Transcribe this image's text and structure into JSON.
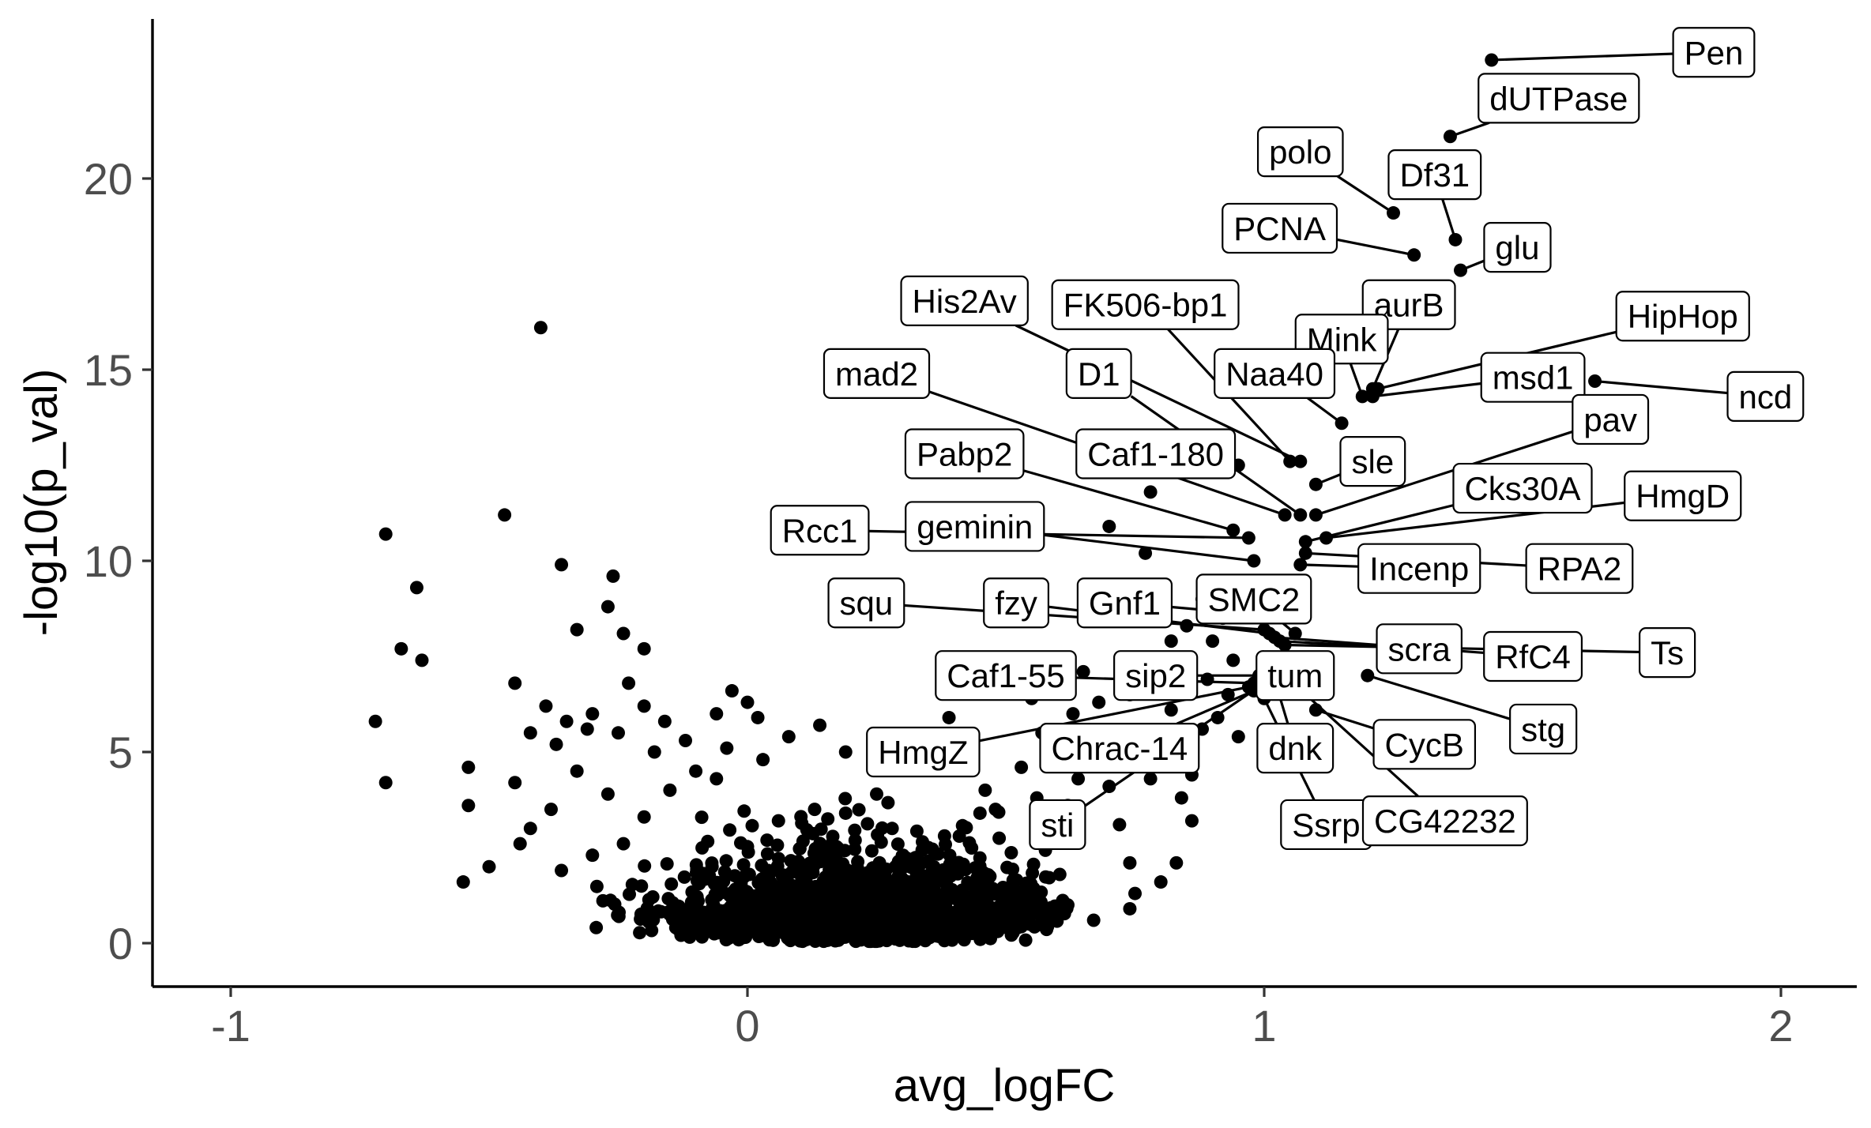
{
  "chart_data": {
    "type": "scatter",
    "title": "",
    "xlabel": "avg_logFC",
    "ylabel": "-log10(p_val)",
    "xlim": [
      -1.15,
      2.15
    ],
    "ylim": [
      -1.15,
      24.1
    ],
    "x_ticks": [
      -1,
      0,
      1,
      2
    ],
    "x_tick_labels": [
      "-1",
      "0",
      "1",
      "2"
    ],
    "y_ticks": [
      0,
      5,
      10,
      15,
      20
    ],
    "y_tick_labels": [
      "0",
      "5",
      "10",
      "15",
      "20"
    ],
    "grid": false,
    "legend": "none",
    "point_color": "#000000",
    "labeled_points": [
      {
        "gene": "Pen",
        "x": 1.44,
        "y": 23.1,
        "lx": 1.87,
        "ly": 23.3
      },
      {
        "gene": "dUTPase",
        "x": 1.36,
        "y": 21.1,
        "lx": 1.57,
        "ly": 22.1
      },
      {
        "gene": "polo",
        "x": 1.25,
        "y": 19.1,
        "lx": 1.07,
        "ly": 20.7
      },
      {
        "gene": "Df31",
        "x": 1.37,
        "y": 18.4,
        "lx": 1.33,
        "ly": 20.1
      },
      {
        "gene": "glu",
        "x": 1.38,
        "y": 17.6,
        "lx": 1.49,
        "ly": 18.2
      },
      {
        "gene": "PCNA",
        "x": 1.29,
        "y": 18.0,
        "lx": 1.03,
        "ly": 18.7
      },
      {
        "gene": "aurB",
        "x": 1.21,
        "y": 14.5,
        "lx": 1.28,
        "ly": 16.7
      },
      {
        "gene": "His2Av",
        "x": 1.07,
        "y": 12.6,
        "lx": 0.42,
        "ly": 16.8
      },
      {
        "gene": "FK506-bp1",
        "x": 1.05,
        "y": 12.6,
        "lx": 0.77,
        "ly": 16.7
      },
      {
        "gene": "Mink",
        "x": 1.19,
        "y": 14.3,
        "lx": 1.15,
        "ly": 15.8
      },
      {
        "gene": "HipHop",
        "x": 1.22,
        "y": 14.5,
        "lx": 1.81,
        "ly": 16.4
      },
      {
        "gene": "mad2",
        "x": 1.04,
        "y": 11.2,
        "lx": 0.25,
        "ly": 14.9
      },
      {
        "gene": "D1",
        "x": 1.07,
        "y": 11.2,
        "lx": 0.68,
        "ly": 14.9
      },
      {
        "gene": "Naa40",
        "x": 1.15,
        "y": 13.6,
        "lx": 1.02,
        "ly": 14.9
      },
      {
        "gene": "msd1",
        "x": 1.21,
        "y": 14.3,
        "lx": 1.52,
        "ly": 14.8
      },
      {
        "gene": "ncd",
        "x": 1.64,
        "y": 14.7,
        "lx": 1.97,
        "ly": 14.3
      },
      {
        "gene": "Pabp2",
        "x": 0.94,
        "y": 10.8,
        "lx": 0.42,
        "ly": 12.8
      },
      {
        "gene": "Caf1-180",
        "x": 0.95,
        "y": 12.5,
        "lx": 0.79,
        "ly": 12.8
      },
      {
        "gene": "sle",
        "x": 1.1,
        "y": 12.0,
        "lx": 1.21,
        "ly": 12.6
      },
      {
        "gene": "pav",
        "x": 1.1,
        "y": 11.2,
        "lx": 1.67,
        "ly": 13.7
      },
      {
        "gene": "Rcc1",
        "x": 0.97,
        "y": 10.6,
        "lx": 0.14,
        "ly": 10.8
      },
      {
        "gene": "geminin",
        "x": 0.98,
        "y": 10.0,
        "lx": 0.44,
        "ly": 10.9
      },
      {
        "gene": "Cks30A",
        "x": 1.08,
        "y": 10.5,
        "lx": 1.5,
        "ly": 11.9
      },
      {
        "gene": "HmgD",
        "x": 1.12,
        "y": 10.6,
        "lx": 1.81,
        "ly": 11.7
      },
      {
        "gene": "Incenp",
        "x": 1.07,
        "y": 9.9,
        "lx": 1.3,
        "ly": 9.8
      },
      {
        "gene": "RPA2",
        "x": 1.08,
        "y": 10.2,
        "lx": 1.61,
        "ly": 9.8
      },
      {
        "gene": "squ",
        "x": 1.0,
        "y": 8.2,
        "lx": 0.23,
        "ly": 8.9
      },
      {
        "gene": "fzy",
        "x": 1.01,
        "y": 8.1,
        "lx": 0.52,
        "ly": 8.9
      },
      {
        "gene": "Gnf1",
        "x": 0.98,
        "y": 8.6,
        "lx": 0.73,
        "ly": 8.9
      },
      {
        "gene": "SMC2",
        "x": 1.06,
        "y": 8.1,
        "lx": 0.98,
        "ly": 9.0
      },
      {
        "gene": "scra",
        "x": 1.03,
        "y": 7.9,
        "lx": 1.3,
        "ly": 7.7
      },
      {
        "gene": "RfC4",
        "x": 1.02,
        "y": 8.0,
        "lx": 1.52,
        "ly": 7.5
      },
      {
        "gene": "Ts",
        "x": 1.04,
        "y": 7.8,
        "lx": 1.78,
        "ly": 7.6
      },
      {
        "gene": "Caf1-55",
        "x": 0.98,
        "y": 6.8,
        "lx": 0.5,
        "ly": 7.0
      },
      {
        "gene": "sip2",
        "x": 0.99,
        "y": 7.0,
        "lx": 0.79,
        "ly": 7.0
      },
      {
        "gene": "tum",
        "x": 1.03,
        "y": 7.3,
        "lx": 1.06,
        "ly": 7.0
      },
      {
        "gene": "HmgZ",
        "x": 0.97,
        "y": 6.7,
        "lx": 0.34,
        "ly": 5.0
      },
      {
        "gene": "Chrac-14",
        "x": 0.98,
        "y": 6.6,
        "lx": 0.72,
        "ly": 5.1
      },
      {
        "gene": "dnk",
        "x": 1.02,
        "y": 6.9,
        "lx": 1.06,
        "ly": 5.1
      },
      {
        "gene": "CycB",
        "x": 1.1,
        "y": 6.1,
        "lx": 1.31,
        "ly": 5.2
      },
      {
        "gene": "stg",
        "x": 1.2,
        "y": 7.0,
        "lx": 1.54,
        "ly": 5.6
      },
      {
        "gene": "sti",
        "x": 1.0,
        "y": 6.8,
        "lx": 0.6,
        "ly": 3.1
      },
      {
        "gene": "Ssrp",
        "x": 1.0,
        "y": 6.4,
        "lx": 1.12,
        "ly": 3.1
      },
      {
        "gene": "CG42232",
        "x": 1.04,
        "y": 7.0,
        "lx": 1.35,
        "ly": 3.2
      }
    ],
    "unlabeled_points": [
      [
        -0.4,
        16.1
      ],
      [
        -0.7,
        10.7
      ],
      [
        -0.64,
        9.3
      ],
      [
        -0.47,
        11.2
      ],
      [
        -0.36,
        9.9
      ],
      [
        -0.67,
        7.7
      ],
      [
        -0.63,
        7.4
      ],
      [
        -0.72,
        5.8
      ],
      [
        -0.7,
        4.2
      ],
      [
        -0.45,
        6.8
      ],
      [
        -0.39,
        6.2
      ],
      [
        -0.54,
        4.6
      ],
      [
        -0.54,
        3.6
      ],
      [
        -0.45,
        4.2
      ],
      [
        -0.33,
        8.2
      ],
      [
        -0.26,
        9.6
      ],
      [
        -0.27,
        8.8
      ],
      [
        -0.24,
        8.1
      ],
      [
        -0.2,
        7.7
      ],
      [
        -0.23,
        6.8
      ],
      [
        -0.31,
        5.6
      ],
      [
        -0.37,
        5.2
      ],
      [
        -0.35,
        5.8
      ],
      [
        -0.42,
        5.5
      ],
      [
        -0.3,
        6.0
      ],
      [
        -0.25,
        5.5
      ],
      [
        -0.18,
        5.0
      ],
      [
        -0.2,
        6.2
      ],
      [
        -0.16,
        5.8
      ],
      [
        -0.12,
        5.3
      ],
      [
        -0.33,
        4.5
      ],
      [
        -0.27,
        3.9
      ],
      [
        -0.38,
        3.5
      ],
      [
        -0.42,
        3.0
      ],
      [
        -0.5,
        2.0
      ],
      [
        -0.55,
        1.6
      ],
      [
        -0.44,
        2.6
      ],
      [
        -0.36,
        1.9
      ],
      [
        -0.3,
        2.3
      ],
      [
        -0.24,
        2.6
      ],
      [
        -0.2,
        3.3
      ],
      [
        -0.15,
        4.0
      ],
      [
        -0.1,
        4.5
      ],
      [
        -0.06,
        6.0
      ],
      [
        -0.03,
        6.6
      ],
      [
        -0.04,
        5.1
      ],
      [
        -0.06,
        4.3
      ],
      [
        0.0,
        6.3
      ],
      [
        0.02,
        5.9
      ],
      [
        0.03,
        4.8
      ],
      [
        0.08,
        5.4
      ],
      [
        0.14,
        5.7
      ],
      [
        0.19,
        5.0
      ],
      [
        0.28,
        4.9
      ],
      [
        0.19,
        3.4
      ],
      [
        0.25,
        3.9
      ],
      [
        0.28,
        3.0
      ],
      [
        0.13,
        3.5
      ],
      [
        0.06,
        3.2
      ],
      [
        0.35,
        2.5
      ],
      [
        0.41,
        2.8
      ],
      [
        0.45,
        3.4
      ],
      [
        0.46,
        4.0
      ],
      [
        0.39,
        5.9
      ],
      [
        0.48,
        3.5
      ],
      [
        0.53,
        4.6
      ],
      [
        0.57,
        5.5
      ],
      [
        0.59,
        4.9
      ],
      [
        0.56,
        3.8
      ],
      [
        0.6,
        2.7
      ],
      [
        0.62,
        3.6
      ],
      [
        0.64,
        4.3
      ],
      [
        0.66,
        5.1
      ],
      [
        0.68,
        6.3
      ],
      [
        0.7,
        4.1
      ],
      [
        0.72,
        3.1
      ],
      [
        0.74,
        2.1
      ],
      [
        0.75,
        1.3
      ],
      [
        0.78,
        4.3
      ],
      [
        0.8,
        5.3
      ],
      [
        0.82,
        6.1
      ],
      [
        0.84,
        3.8
      ],
      [
        0.86,
        4.4
      ],
      [
        0.88,
        5.6
      ],
      [
        0.83,
        2.1
      ],
      [
        0.8,
        1.6
      ],
      [
        0.74,
        0.9
      ],
      [
        0.62,
        1.0
      ],
      [
        0.67,
        0.6
      ],
      [
        0.78,
        11.8
      ],
      [
        0.7,
        10.9
      ],
      [
        0.77,
        10.2
      ],
      [
        0.88,
        9.0
      ],
      [
        0.92,
        8.5
      ],
      [
        0.9,
        7.9
      ],
      [
        0.94,
        7.4
      ],
      [
        0.89,
        6.9
      ],
      [
        0.93,
        6.5
      ],
      [
        0.91,
        5.9
      ],
      [
        0.95,
        5.4
      ],
      [
        0.82,
        7.9
      ],
      [
        0.85,
        8.3
      ],
      [
        0.84,
        7.2
      ],
      [
        0.76,
        7.0
      ],
      [
        0.74,
        6.5
      ],
      [
        0.65,
        7.1
      ],
      [
        0.63,
        6.0
      ],
      [
        0.55,
        6.4
      ],
      [
        0.6,
        6.8
      ],
      [
        0.86,
        3.2
      ]
    ],
    "dense_cluster": {
      "description_free": true,
      "center_x": 0.22,
      "x_spread": 0.2,
      "y_max": 2.6,
      "count": 1400
    }
  }
}
